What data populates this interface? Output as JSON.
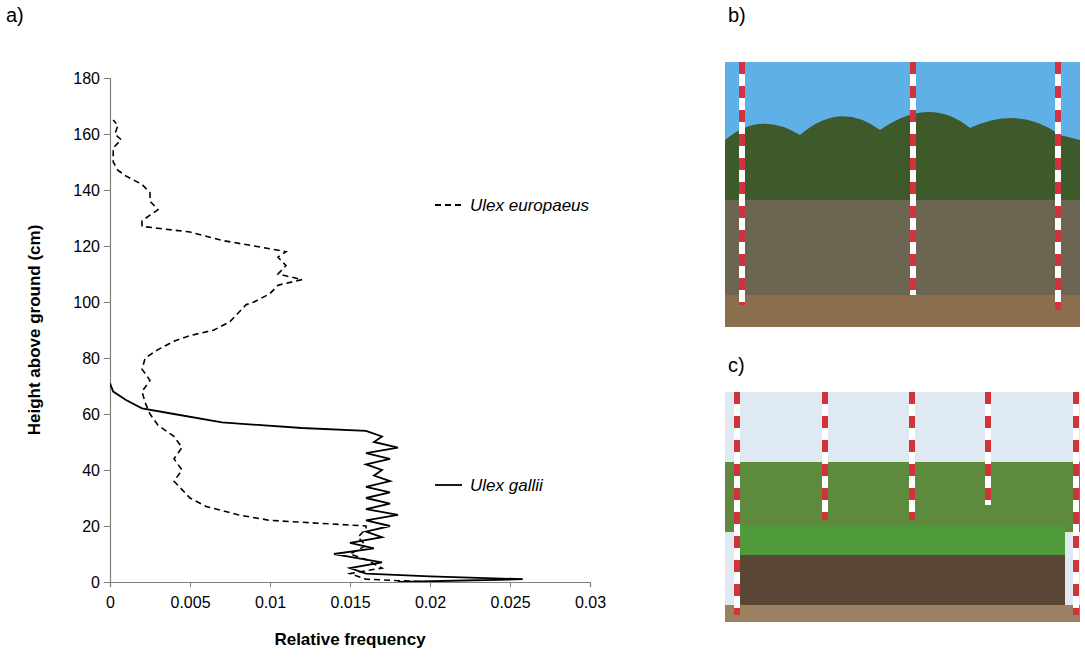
{
  "panel_labels": [
    "a)",
    "b)",
    "c)"
  ],
  "chart_data": {
    "type": "line",
    "xlabel": "Relative frequency",
    "ylabel": "Height above ground (cm)",
    "xlim": [
      0,
      0.03
    ],
    "xticks": [
      0,
      0.005,
      0.01,
      0.015,
      0.02,
      0.025,
      0.03
    ],
    "ylim": [
      0,
      180
    ],
    "yticks": [
      0,
      20,
      40,
      60,
      80,
      100,
      120,
      140,
      160,
      180
    ],
    "grid": false,
    "legend": "right",
    "series": [
      {
        "name": "Ulex europaeus",
        "color": "#000000",
        "line_style": "dashed",
        "x": [
          0.02,
          0.016,
          0.015,
          0.017,
          0.016,
          0.015,
          0.016,
          0.0155,
          0.016,
          0.016,
          0.013,
          0.01,
          0.008,
          0.006,
          0.005,
          0.0045,
          0.004,
          0.0045,
          0.004,
          0.0045,
          0.004,
          0.003,
          0.0025,
          0.0022,
          0.002,
          0.0025,
          0.002,
          0.0022,
          0.003,
          0.004,
          0.005,
          0.0065,
          0.0075,
          0.008,
          0.0085,
          0.009,
          0.01,
          0.0105,
          0.012,
          0.0105,
          0.011,
          0.0105,
          0.011,
          0.009,
          0.007,
          0.005,
          0.002,
          0.002,
          0.0025,
          0.003,
          0.0025,
          0.0025,
          0.002,
          0.001,
          0.0005,
          0.0002,
          0.0002,
          0.0007,
          0.0003,
          0.0005,
          0.0002
        ],
        "y": [
          0,
          1,
          3,
          5,
          8,
          10,
          13,
          16,
          19,
          20,
          21,
          22,
          24,
          27,
          30,
          33,
          36,
          40,
          44,
          48,
          52,
          56,
          60,
          64,
          68,
          72,
          76,
          80,
          83,
          86,
          88,
          90,
          93,
          96,
          99,
          100,
          103,
          106,
          108,
          110,
          113,
          116,
          118,
          120,
          122,
          125,
          127,
          129,
          131,
          133,
          136,
          139,
          142,
          145,
          147,
          150,
          155,
          158,
          160,
          163,
          165
        ]
      },
      {
        "name": "Ulex gallii",
        "color": "#000000",
        "line_style": "solid",
        "x": [
          0.018,
          0.0258,
          0.02,
          0.016,
          0.015,
          0.017,
          0.015,
          0.014,
          0.0165,
          0.015,
          0.017,
          0.016,
          0.0175,
          0.016,
          0.018,
          0.016,
          0.0175,
          0.016,
          0.0175,
          0.016,
          0.0175,
          0.0165,
          0.017,
          0.016,
          0.0175,
          0.016,
          0.018,
          0.0165,
          0.017,
          0.016,
          0.012,
          0.007,
          0.004,
          0.002,
          0.001,
          0.0002,
          0
        ],
        "y": [
          0,
          1,
          2,
          3,
          5,
          7,
          9,
          10,
          12,
          14,
          16,
          18,
          20,
          22,
          24,
          26,
          28,
          30,
          32,
          34,
          36,
          38,
          40,
          42,
          44,
          46,
          48,
          50,
          52,
          54,
          55,
          57,
          60,
          62,
          65,
          68,
          71
        ]
      }
    ]
  }
}
